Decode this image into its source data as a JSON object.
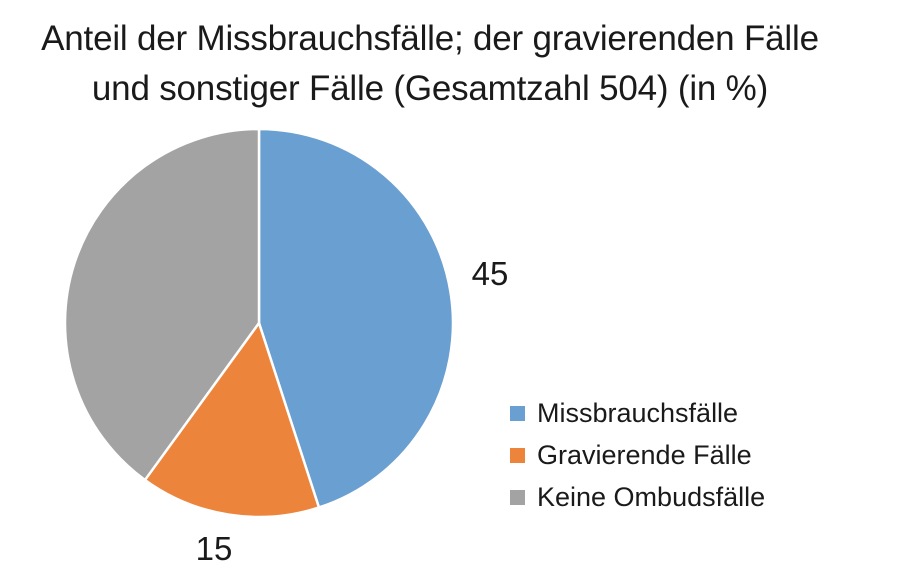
{
  "chart_data": {
    "type": "pie",
    "title_lines": [
      "Anteil der Missbrauchsfälle; der gravierenden Fälle",
      "und sonstiger Fälle (Gesamtzahl 504) (in %)"
    ],
    "slices": [
      {
        "name": "Missbrauchsfälle",
        "value": 45,
        "color": "#6a9fd1",
        "label": "45"
      },
      {
        "name": "Gravierende Fälle",
        "value": 15,
        "color": "#ed843b",
        "label": "15"
      },
      {
        "name": "Keine Ombudsfälle",
        "value": 40,
        "color": "#a3a3a3",
        "label": ""
      }
    ],
    "legend_position": "right"
  }
}
